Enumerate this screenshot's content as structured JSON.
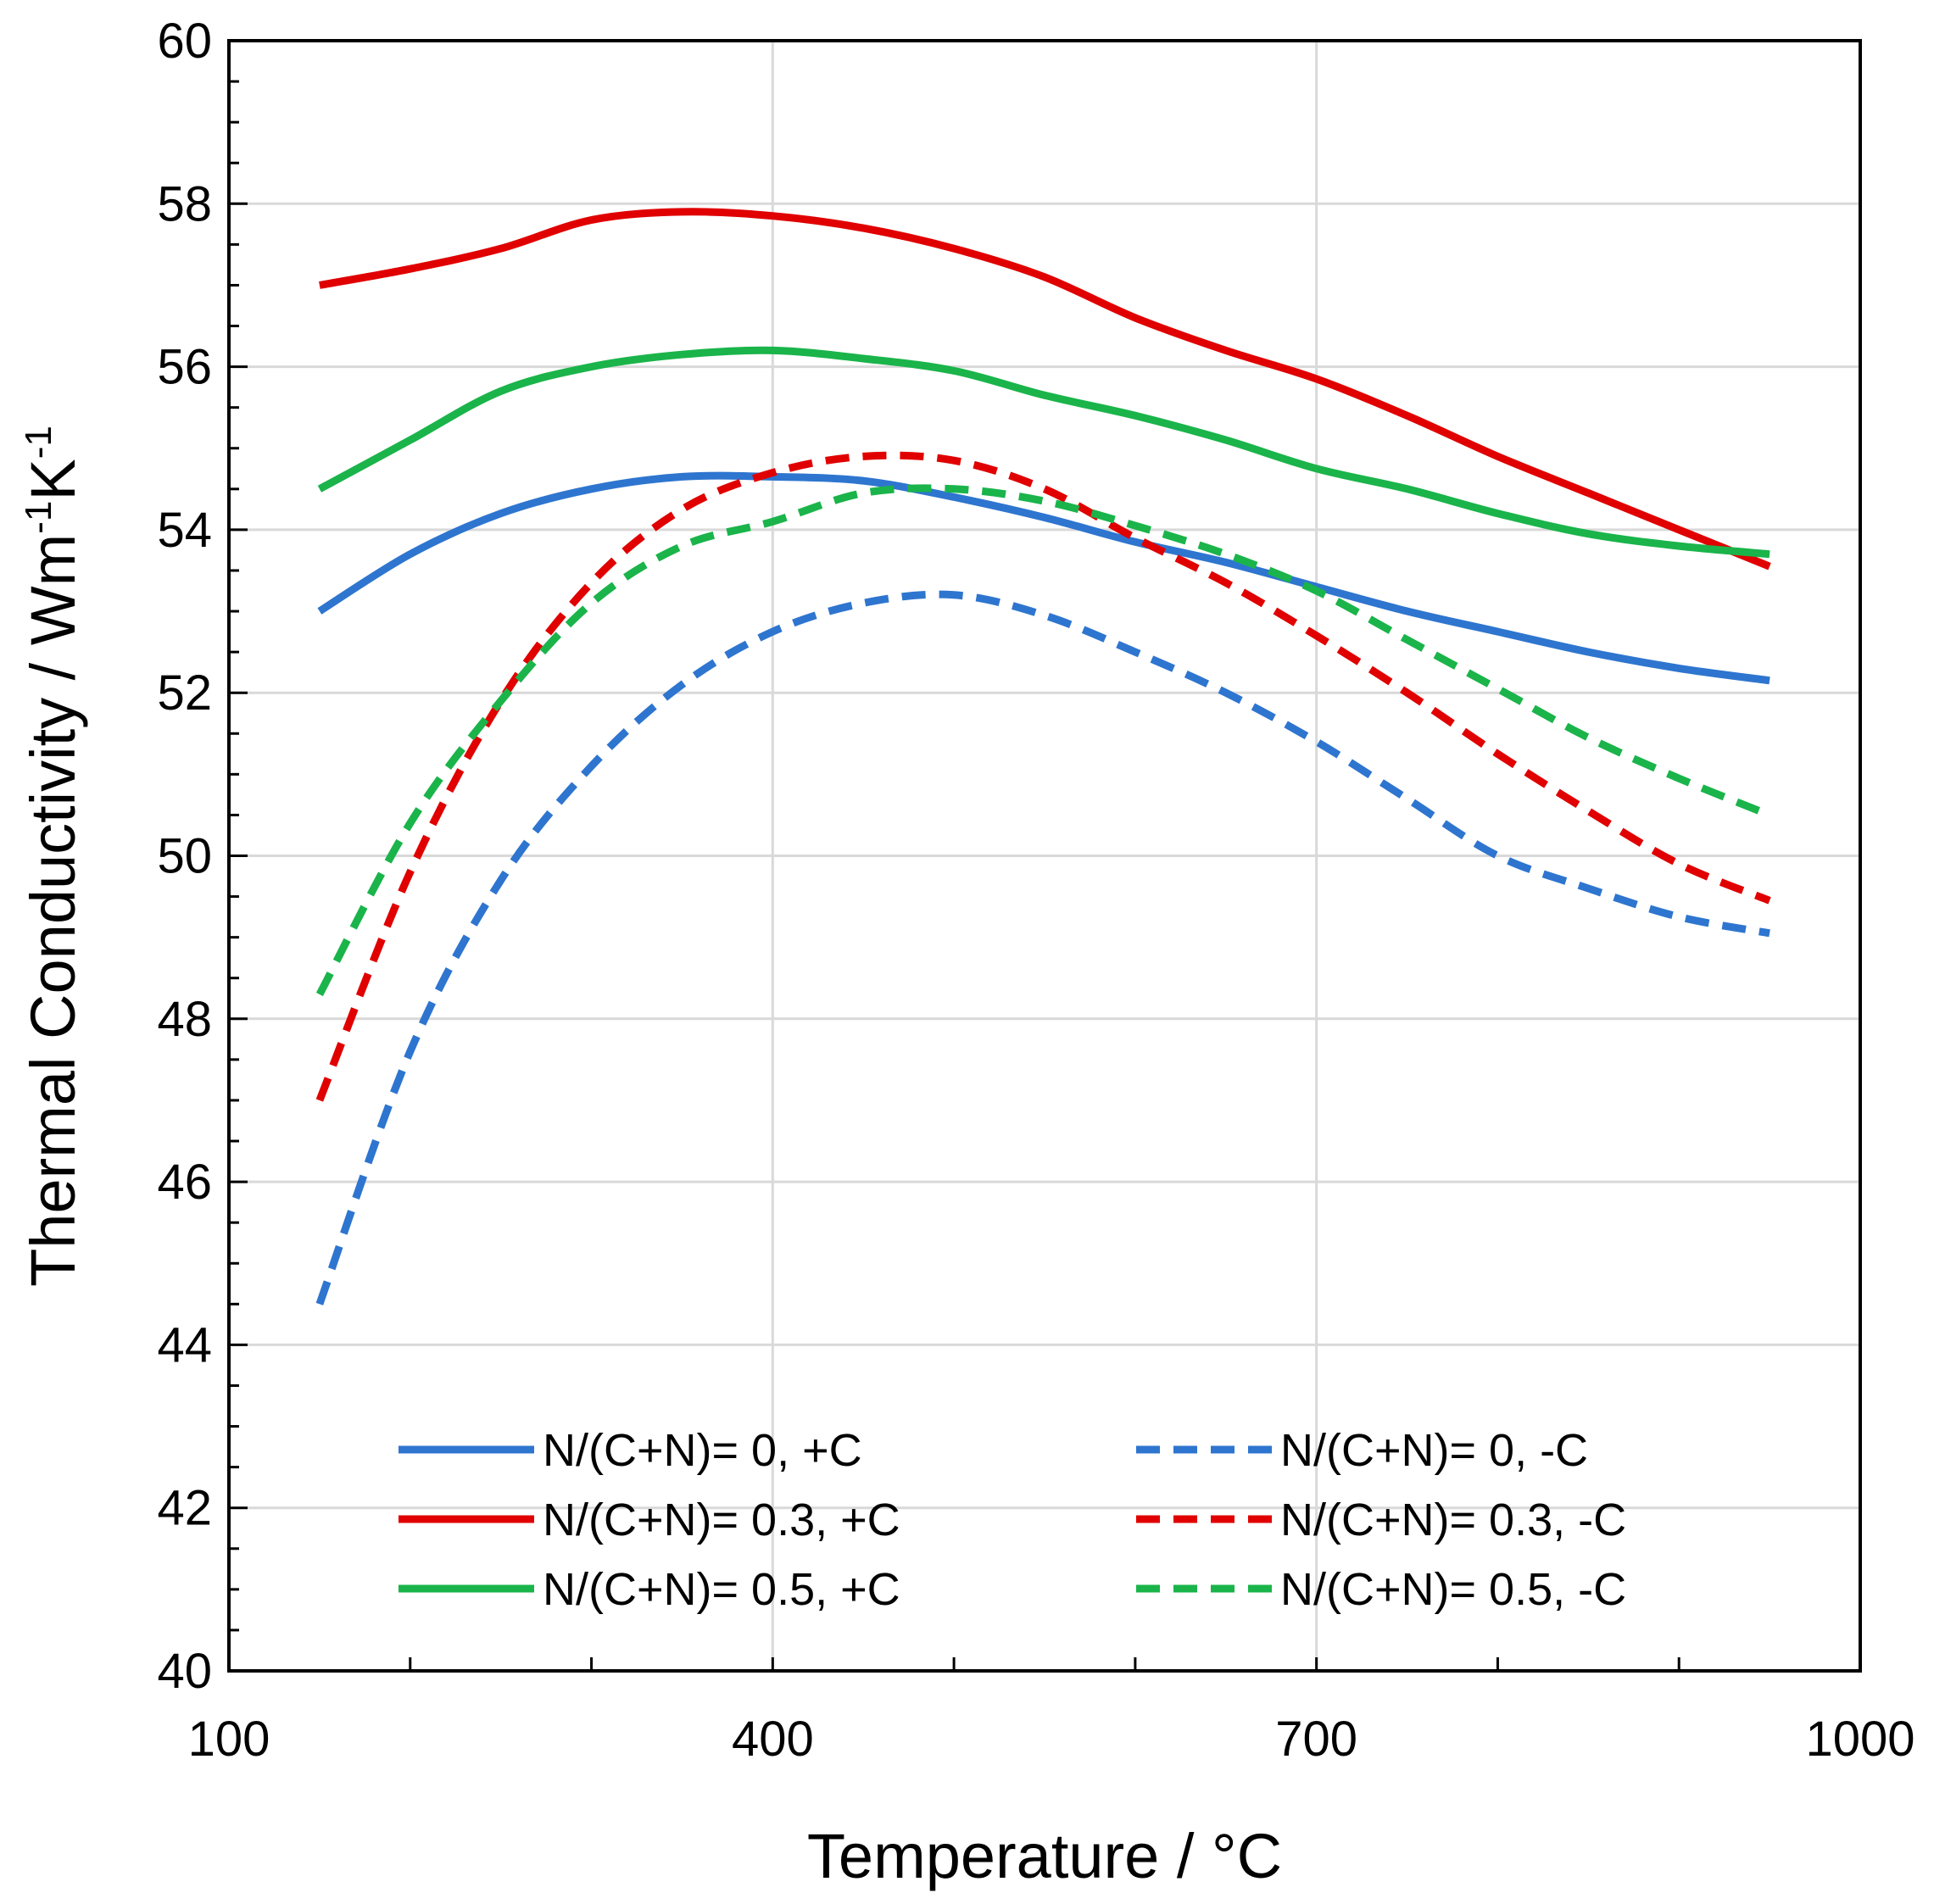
{
  "chart_data": {
    "type": "line",
    "xlabel": "Temperature / °C",
    "ylabel": {
      "base": "Thermal Conductivity / Wm",
      "sup1": "-1",
      "mid": "K",
      "sup2": "-1"
    },
    "xlim": [
      100,
      1000
    ],
    "ylim": [
      40,
      60
    ],
    "x_ticks": [
      100,
      400,
      700,
      1000
    ],
    "x_minor_step": 100,
    "y_ticks": [
      40,
      42,
      44,
      46,
      48,
      50,
      52,
      54,
      56,
      58,
      60
    ],
    "y_minor_step": 0.5,
    "grid": true,
    "legend_position": "lower-center",
    "series": [
      {
        "name": "N/(C+N)= 0, +C",
        "color": "#2e75cf",
        "dash": false,
        "x": [
          150,
          200,
          250,
          300,
          350,
          400,
          450,
          500,
          550,
          600,
          650,
          700,
          750,
          800,
          850,
          900,
          950
        ],
        "y": [
          53.0,
          53.7,
          54.2,
          54.5,
          54.65,
          54.65,
          54.6,
          54.4,
          54.15,
          53.85,
          53.6,
          53.3,
          53.0,
          52.75,
          52.5,
          52.3,
          52.15
        ]
      },
      {
        "name": "N/(C+N)= 0.3, +C",
        "color": "#e00000",
        "dash": false,
        "x": [
          150,
          200,
          250,
          300,
          350,
          400,
          450,
          500,
          550,
          600,
          650,
          700,
          750,
          800,
          850,
          900,
          950
        ],
        "y": [
          57.0,
          57.2,
          57.45,
          57.8,
          57.9,
          57.85,
          57.7,
          57.45,
          57.1,
          56.6,
          56.2,
          55.85,
          55.4,
          54.9,
          54.45,
          54.0,
          53.55
        ]
      },
      {
        "name": "N/(C+N)= 0.5, +C",
        "color": "#1ab44a",
        "dash": false,
        "x": [
          150,
          200,
          250,
          300,
          350,
          400,
          450,
          500,
          550,
          600,
          650,
          700,
          750,
          800,
          850,
          900,
          950
        ],
        "y": [
          54.5,
          55.1,
          55.7,
          56.0,
          56.15,
          56.2,
          56.1,
          55.95,
          55.65,
          55.4,
          55.1,
          54.75,
          54.5,
          54.2,
          53.95,
          53.8,
          53.7
        ]
      },
      {
        "name": "N/(C+N)= 0, -C",
        "color": "#2e75cf",
        "dash": true,
        "x": [
          150,
          200,
          250,
          300,
          350,
          400,
          450,
          500,
          550,
          600,
          650,
          700,
          750,
          800,
          850,
          900,
          950
        ],
        "y": [
          44.5,
          47.6,
          49.7,
          51.1,
          52.1,
          52.75,
          53.1,
          53.2,
          52.95,
          52.5,
          52.0,
          51.4,
          50.7,
          50.0,
          49.6,
          49.25,
          49.05
        ]
      },
      {
        "name": "N/(C+N)= 0.3, -C",
        "color": "#e00000",
        "dash": true,
        "x": [
          150,
          200,
          250,
          300,
          350,
          400,
          450,
          500,
          550,
          600,
          650,
          700,
          750,
          800,
          850,
          900,
          950
        ],
        "y": [
          47.0,
          49.8,
          51.9,
          53.35,
          54.25,
          54.7,
          54.9,
          54.85,
          54.5,
          53.9,
          53.35,
          52.7,
          52.0,
          51.25,
          50.55,
          49.9,
          49.45
        ]
      },
      {
        "name": "N/(C+N)= 0.5, -C",
        "color": "#1ab44a",
        "dash": true,
        "x": [
          150,
          200,
          250,
          300,
          350,
          400,
          450,
          500,
          550,
          600,
          650,
          700,
          750,
          800,
          850,
          900,
          950
        ],
        "y": [
          48.3,
          50.4,
          51.9,
          53.1,
          53.8,
          54.1,
          54.45,
          54.5,
          54.35,
          54.05,
          53.7,
          53.25,
          52.65,
          52.05,
          51.45,
          50.95,
          50.5
        ]
      }
    ]
  }
}
